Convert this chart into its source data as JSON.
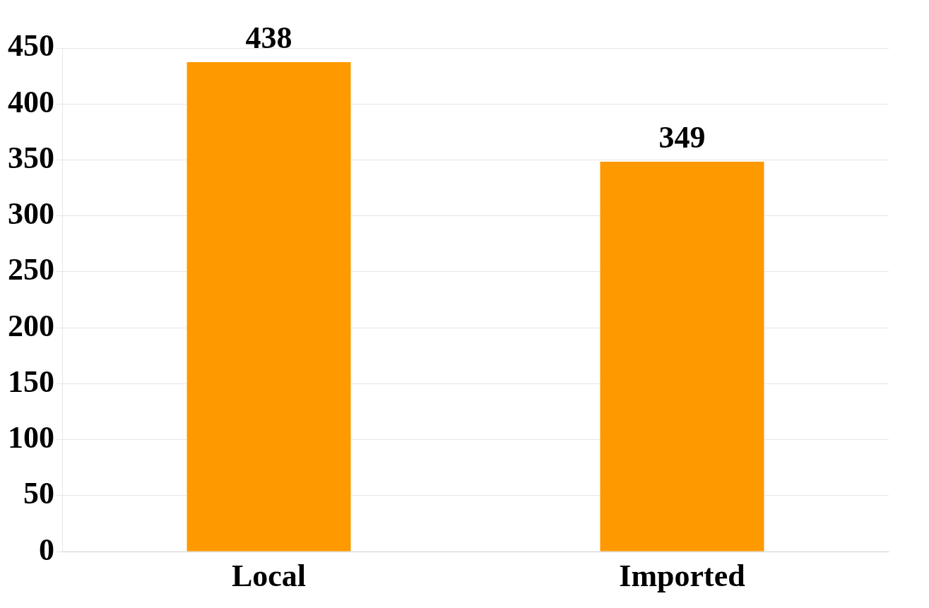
{
  "chart_data": {
    "type": "bar",
    "categories": [
      "Local",
      "Imported"
    ],
    "values": [
      438,
      349
    ],
    "color": "#ff9900",
    "ylim": [
      0,
      450
    ],
    "yticks": [
      0,
      50,
      100,
      150,
      200,
      250,
      300,
      350,
      400,
      450
    ],
    "grid": "y",
    "data_labels": true
  }
}
